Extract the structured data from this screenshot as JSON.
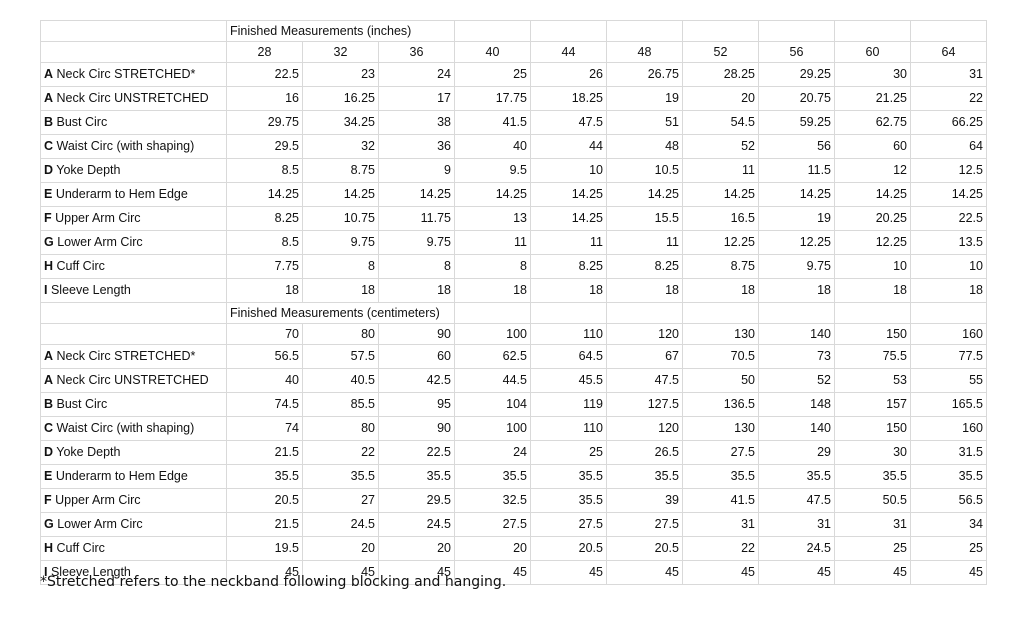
{
  "inches": {
    "title": "Finished Measurements (inches)",
    "sizes": [
      "28",
      "32",
      "36",
      "40",
      "44",
      "48",
      "52",
      "56",
      "60",
      "64"
    ],
    "rows": [
      {
        "letter": "A",
        "label": " Neck Circ STRETCHED*",
        "values": [
          "22.5",
          "23",
          "24",
          "25",
          "26",
          "26.75",
          "28.25",
          "29.25",
          "30",
          "31"
        ]
      },
      {
        "letter": "A",
        "label": " Neck Circ UNSTRETCHED",
        "values": [
          "16",
          "16.25",
          "17",
          "17.75",
          "18.25",
          "19",
          "20",
          "20.75",
          "21.25",
          "22"
        ]
      },
      {
        "letter": "B",
        "label": " Bust Circ",
        "values": [
          "29.75",
          "34.25",
          "38",
          "41.5",
          "47.5",
          "51",
          "54.5",
          "59.25",
          "62.75",
          "66.25"
        ]
      },
      {
        "letter": "C",
        "label": " Waist Circ (with shaping)",
        "values": [
          "29.5",
          "32",
          "36",
          "40",
          "44",
          "48",
          "52",
          "56",
          "60",
          "64"
        ]
      },
      {
        "letter": "D",
        "label": " Yoke Depth",
        "values": [
          "8.5",
          "8.75",
          "9",
          "9.5",
          "10",
          "10.5",
          "11",
          "11.5",
          "12",
          "12.5"
        ]
      },
      {
        "letter": "E",
        "label": " Underarm to Hem Edge",
        "values": [
          "14.25",
          "14.25",
          "14.25",
          "14.25",
          "14.25",
          "14.25",
          "14.25",
          "14.25",
          "14.25",
          "14.25"
        ]
      },
      {
        "letter": "F",
        "label": " Upper Arm Circ",
        "values": [
          "8.25",
          "10.75",
          "11.75",
          "13",
          "14.25",
          "15.5",
          "16.5",
          "19",
          "20.25",
          "22.5"
        ]
      },
      {
        "letter": "G",
        "label": " Lower Arm Circ",
        "values": [
          "8.5",
          "9.75",
          "9.75",
          "11",
          "11",
          "11",
          "12.25",
          "12.25",
          "12.25",
          "13.5"
        ]
      },
      {
        "letter": "H",
        "label": " Cuff Circ",
        "values": [
          "7.75",
          "8",
          "8",
          "8",
          "8.25",
          "8.25",
          "8.75",
          "9.75",
          "10",
          "10"
        ]
      },
      {
        "letter": "I",
        "label": " Sleeve Length",
        "values": [
          "18",
          "18",
          "18",
          "18",
          "18",
          "18",
          "18",
          "18",
          "18",
          "18"
        ]
      }
    ]
  },
  "centimeters": {
    "title": "Finished Measurements (centimeters)",
    "sizes": [
      "70",
      "80",
      "90",
      "100",
      "110",
      "120",
      "130",
      "140",
      "150",
      "160"
    ],
    "rows": [
      {
        "letter": "A",
        "label": " Neck Circ STRETCHED*",
        "values": [
          "56.5",
          "57.5",
          "60",
          "62.5",
          "64.5",
          "67",
          "70.5",
          "73",
          "75.5",
          "77.5"
        ]
      },
      {
        "letter": "A",
        "label": " Neck Circ UNSTRETCHED",
        "values": [
          "40",
          "40.5",
          "42.5",
          "44.5",
          "45.5",
          "47.5",
          "50",
          "52",
          "53",
          "55"
        ]
      },
      {
        "letter": "B",
        "label": " Bust Circ",
        "values": [
          "74.5",
          "85.5",
          "95",
          "104",
          "119",
          "127.5",
          "136.5",
          "148",
          "157",
          "165.5"
        ]
      },
      {
        "letter": "C",
        "label": " Waist Circ (with shaping)",
        "values": [
          "74",
          "80",
          "90",
          "100",
          "110",
          "120",
          "130",
          "140",
          "150",
          "160"
        ]
      },
      {
        "letter": "D",
        "label": " Yoke Depth",
        "values": [
          "21.5",
          "22",
          "22.5",
          "24",
          "25",
          "26.5",
          "27.5",
          "29",
          "30",
          "31.5"
        ]
      },
      {
        "letter": "E",
        "label": " Underarm to Hem Edge",
        "values": [
          "35.5",
          "35.5",
          "35.5",
          "35.5",
          "35.5",
          "35.5",
          "35.5",
          "35.5",
          "35.5",
          "35.5"
        ]
      },
      {
        "letter": "F",
        "label": " Upper Arm Circ",
        "values": [
          "20.5",
          "27",
          "29.5",
          "32.5",
          "35.5",
          "39",
          "41.5",
          "47.5",
          "50.5",
          "56.5"
        ]
      },
      {
        "letter": "G",
        "label": " Lower Arm Circ",
        "values": [
          "21.5",
          "24.5",
          "24.5",
          "27.5",
          "27.5",
          "27.5",
          "31",
          "31",
          "31",
          "34"
        ]
      },
      {
        "letter": "H",
        "label": " Cuff Circ",
        "values": [
          "19.5",
          "20",
          "20",
          "20",
          "20.5",
          "20.5",
          "22",
          "24.5",
          "25",
          "25"
        ]
      },
      {
        "letter": "I",
        "label": " Sleeve Length",
        "values": [
          "45",
          "45",
          "45",
          "45",
          "45",
          "45",
          "45",
          "45",
          "45",
          "45"
        ]
      }
    ]
  },
  "footnote": "*Stretched refers to the neckband following blocking and hanging."
}
